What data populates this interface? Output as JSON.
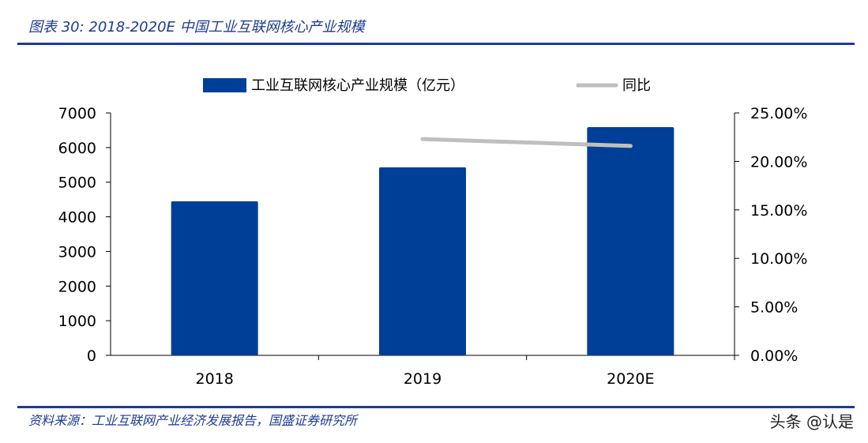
{
  "title": "图表 30:  2018-2020E 中国工业互联网核心产业规模",
  "source": "资料来源：工业互联网产业经济发展报告，国盛证券研究所",
  "watermark": "头条 @认是",
  "colors": {
    "bar": "#003F98",
    "line": "#BFBFBF",
    "accent": "#1F3A93"
  },
  "chart_data": {
    "type": "bar+line",
    "categories": [
      "2018",
      "2019",
      "2020E"
    ],
    "series": [
      {
        "name": "工业互联网核心产业规模（亿元）",
        "type": "bar",
        "axis": "left",
        "values": [
          4450,
          5430,
          6590
        ]
      },
      {
        "name": "同比",
        "type": "line",
        "axis": "right",
        "values": [
          null,
          22.3,
          21.6
        ]
      }
    ],
    "ylim": [
      0,
      7000
    ],
    "yticks": [
      "0",
      "1000",
      "2000",
      "3000",
      "4000",
      "5000",
      "6000",
      "7000"
    ],
    "y2lim": [
      0,
      25
    ],
    "y2ticks": [
      "0.00%",
      "5.00%",
      "10.00%",
      "15.00%",
      "20.00%",
      "25.00%"
    ],
    "legend": "top",
    "grid": false
  }
}
